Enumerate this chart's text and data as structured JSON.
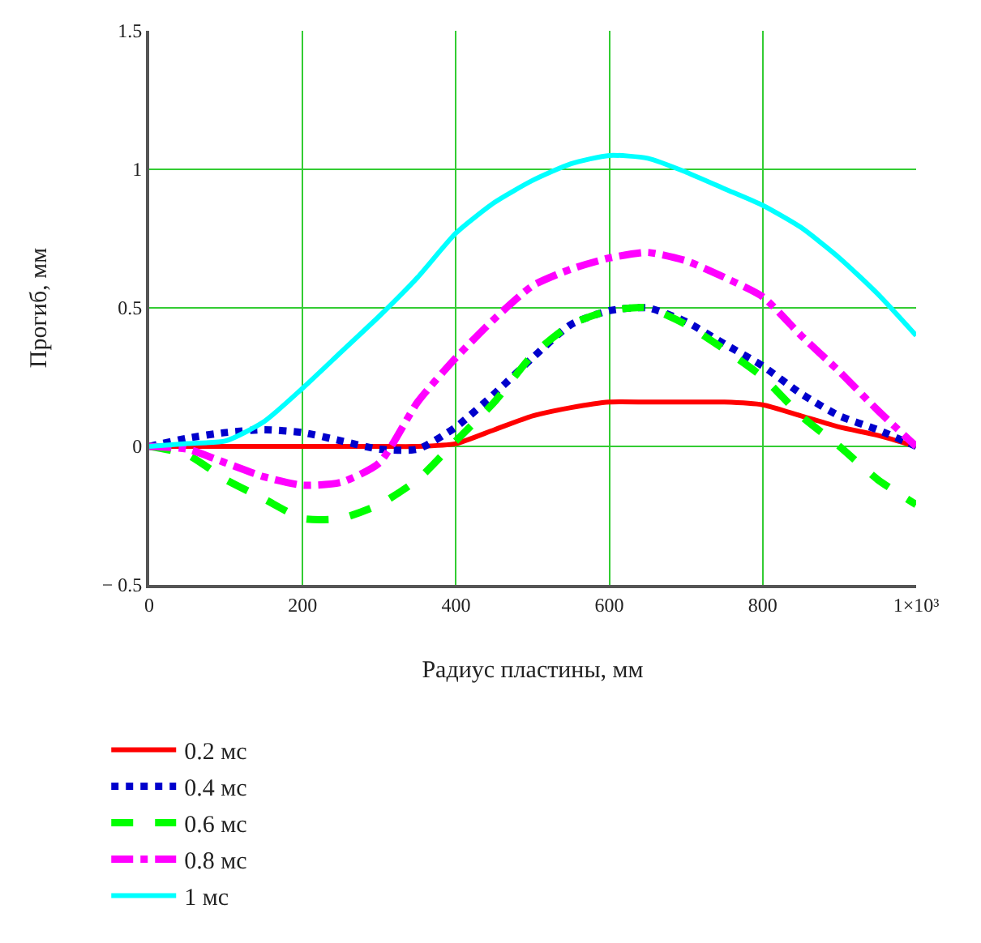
{
  "chart_data": {
    "type": "line",
    "xlabel": "Радиус пластины, мм",
    "ylabel": "Прогиб, мм",
    "x": [
      0,
      50,
      100,
      150,
      200,
      250,
      300,
      350,
      400,
      450,
      500,
      550,
      600,
      650,
      700,
      750,
      800,
      850,
      900,
      950,
      1000
    ],
    "series": [
      {
        "name": "0.2 мс",
        "color": "#ff0000",
        "line_style": "solid",
        "values": [
          0,
          0,
          0,
          0,
          0,
          0,
          0,
          0,
          0.01,
          0.06,
          0.11,
          0.14,
          0.16,
          0.16,
          0.16,
          0.16,
          0.15,
          0.11,
          0.07,
          0.04,
          0.0
        ]
      },
      {
        "name": "0.4 мс",
        "color": "#0000cc",
        "line_style": "dotted",
        "values": [
          0,
          0.03,
          0.05,
          0.06,
          0.05,
          0.02,
          -0.01,
          -0.01,
          0.07,
          0.19,
          0.32,
          0.44,
          0.49,
          0.5,
          0.45,
          0.37,
          0.29,
          0.19,
          0.11,
          0.06,
          0.0
        ]
      },
      {
        "name": "0.6 мс",
        "color": "#00ff00",
        "line_style": "dashed",
        "values": [
          0,
          -0.03,
          -0.12,
          -0.19,
          -0.26,
          -0.26,
          -0.21,
          -0.12,
          0.02,
          0.16,
          0.33,
          0.44,
          0.49,
          0.5,
          0.44,
          0.35,
          0.25,
          0.11,
          0.0,
          -0.12,
          -0.21
        ]
      },
      {
        "name": "0.8 мс",
        "color": "#ff00ff",
        "line_style": "dashdot",
        "values": [
          0,
          -0.01,
          -0.06,
          -0.11,
          -0.14,
          -0.13,
          -0.06,
          0.16,
          0.32,
          0.46,
          0.58,
          0.64,
          0.68,
          0.7,
          0.67,
          0.61,
          0.54,
          0.4,
          0.27,
          0.13,
          0.0
        ]
      },
      {
        "name": "1 мс",
        "color": "#00ffff",
        "line_style": "solid",
        "values": [
          0,
          0.01,
          0.02,
          0.09,
          0.21,
          0.34,
          0.47,
          0.61,
          0.77,
          0.88,
          0.96,
          1.02,
          1.05,
          1.04,
          0.99,
          0.93,
          0.87,
          0.79,
          0.68,
          0.55,
          0.4
        ]
      }
    ],
    "xlim": [
      0,
      1000
    ],
    "xticks": [
      0,
      200,
      400,
      600,
      800,
      {
        "value": 1000,
        "label": "1×10³"
      }
    ],
    "ylim": [
      -0.5,
      1.5
    ],
    "yticks": [
      {
        "value": -0.5,
        "label": "− 0.5"
      },
      0,
      0.5,
      1,
      1.5
    ],
    "grid": true,
    "legend": "bottom left",
    "marker": "none"
  }
}
